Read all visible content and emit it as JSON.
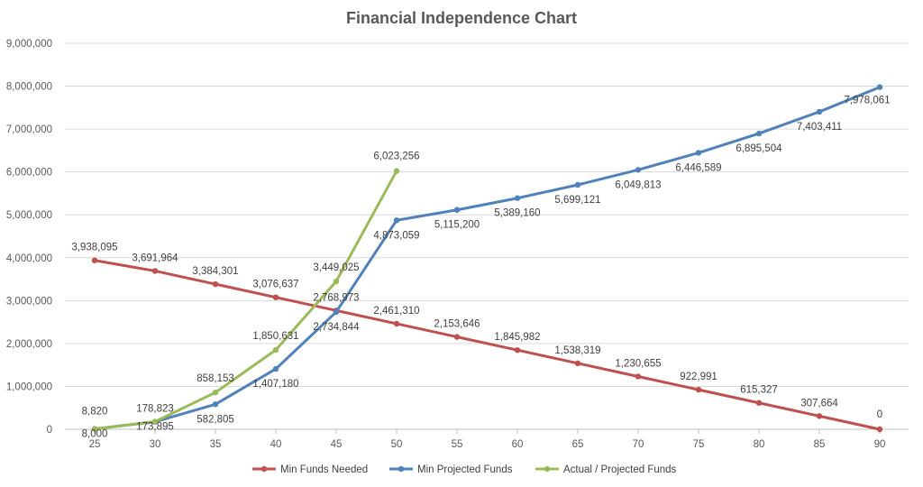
{
  "chart_data": {
    "type": "line",
    "title": "Financial Independence Chart",
    "xlabel": "",
    "ylabel": "",
    "x": [
      25,
      30,
      35,
      40,
      45,
      50,
      55,
      60,
      65,
      70,
      75,
      80,
      85,
      90
    ],
    "ylim": [
      0,
      9000000
    ],
    "yticks": [
      0,
      1000000,
      2000000,
      3000000,
      4000000,
      5000000,
      6000000,
      7000000,
      8000000,
      9000000
    ],
    "ytick_labels": [
      "0",
      "1,000,000",
      "2,000,000",
      "3,000,000",
      "4,000,000",
      "5,000,000",
      "6,000,000",
      "7,000,000",
      "8,000,000",
      "9,000,000"
    ],
    "grid": "horizontal",
    "legend_position": "bottom",
    "series": [
      {
        "name": "Min Funds Needed",
        "color": "#C0504D",
        "x": [
          25,
          30,
          35,
          40,
          45,
          50,
          55,
          60,
          65,
          70,
          75,
          80,
          85,
          90
        ],
        "values": [
          3938095,
          3691964,
          3384301,
          3076637,
          2768973,
          2461310,
          2153646,
          1845982,
          1538319,
          1230655,
          922991,
          615327,
          307664,
          0
        ],
        "labels": [
          "3,938,095",
          "3,691,964",
          "3,384,301",
          "3,076,637",
          "2,768,973",
          "2,461,310",
          "2,153,646",
          "1,845,982",
          "1,538,319",
          "1,230,655",
          "922,991",
          "615,327",
          "307,664",
          "0"
        ]
      },
      {
        "name": "Min Projected Funds",
        "color": "#4F81BD",
        "x": [
          25,
          30,
          35,
          40,
          45,
          50,
          55,
          60,
          65,
          70,
          75,
          80,
          85,
          90
        ],
        "values": [
          8000,
          173895,
          582805,
          1407180,
          2734844,
          4873059,
          5115200,
          5389160,
          5699121,
          6049813,
          6446589,
          6895504,
          7403411,
          7978061
        ],
        "labels": [
          "8,000",
          "173,895",
          "582,805",
          "1,407,180",
          "2,734,844",
          "4,873,059",
          "5,115,200",
          "5,389,160",
          "5,699,121",
          "6,049,813",
          "6,446,589",
          "6,895,504",
          "7,403,411",
          "7,978,061"
        ]
      },
      {
        "name": "Actual / Projected Funds",
        "color": "#9BBB59",
        "x": [
          25,
          30,
          35,
          40,
          45,
          50
        ],
        "values": [
          8820,
          178823,
          858153,
          1850631,
          3449025,
          6023256
        ],
        "labels": [
          "8,820",
          "178,823",
          "858,153",
          "1,850,631",
          "3,449,025",
          "6,023,256"
        ]
      }
    ]
  }
}
